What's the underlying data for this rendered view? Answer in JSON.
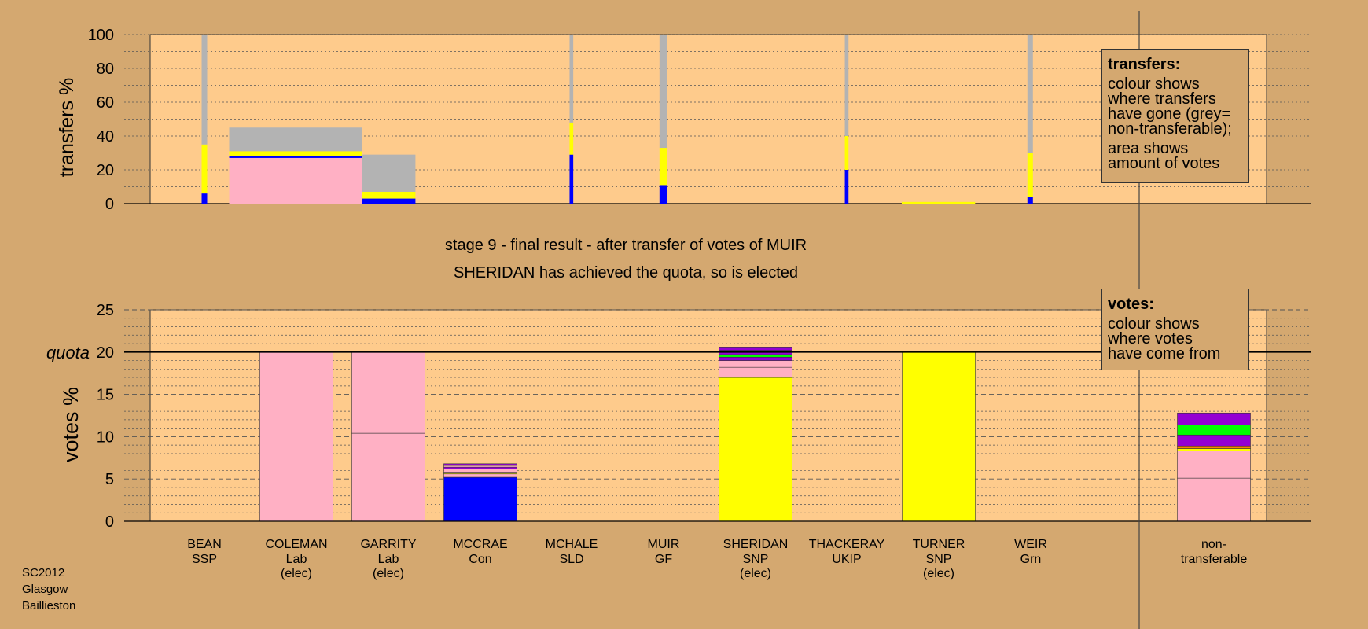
{
  "colors": {
    "background": "#d4a870",
    "plot_bg": "#fecb8c",
    "Lab": "#ffb0c4",
    "SNP": "#ffff00",
    "Con": "#0000ff",
    "Grn": "#00ff00",
    "SLD": "#9400d3",
    "nontransferable": "#b3b3b3",
    "ssp": "#ff7f00"
  },
  "stage_text": {
    "line1": "stage 9 - final result - after transfer of votes of MUIR",
    "line2": "SHERIDAN has achieved the quota, so is elected"
  },
  "legends": {
    "transfers": {
      "title": "transfers:",
      "lines_a": [
        "colour shows",
        "where transfers",
        "have gone (grey=",
        "non-transferable);"
      ],
      "lines_b": [
        "area shows",
        "amount of votes"
      ]
    },
    "votes": {
      "title": "votes:",
      "lines": [
        "colour shows",
        "where votes",
        "have come from"
      ]
    }
  },
  "footer": [
    "SC2012",
    "Glasgow",
    "Baillieston"
  ],
  "candidates": [
    {
      "name": "BEAN",
      "party": "SSP",
      "status": ""
    },
    {
      "name": "COLEMAN",
      "party": "Lab",
      "status": "(elec)"
    },
    {
      "name": "GARRITY",
      "party": "Lab",
      "status": "(elec)"
    },
    {
      "name": "MCCRAE",
      "party": "Con",
      "status": ""
    },
    {
      "name": "MCHALE",
      "party": "SLD",
      "status": ""
    },
    {
      "name": "MUIR",
      "party": "GF",
      "status": ""
    },
    {
      "name": "SHERIDAN",
      "party": "SNP",
      "status": "(elec)"
    },
    {
      "name": "THACKERAY",
      "party": "UKIP",
      "status": ""
    },
    {
      "name": "TURNER",
      "party": "SNP",
      "status": "(elec)"
    },
    {
      "name": "WEIR",
      "party": "Grn",
      "status": ""
    },
    {
      "name": "non-",
      "party": "transferable",
      "status": ""
    }
  ],
  "chart_data": [
    {
      "type": "bar",
      "ylabel": "transfers %",
      "ylim": [
        0,
        100
      ],
      "yticks": [
        0,
        20,
        40,
        60,
        80,
        100
      ],
      "grid": true,
      "note": "stacked transfer bars; bar width proportional to amount of votes transferred",
      "bars": [
        {
          "candidate": "BEAN",
          "x_from": 0.97,
          "x_to": 1.03,
          "segments": [
            {
              "color": "Con",
              "from": 0,
              "to": 6
            },
            {
              "color": "SNP",
              "from": 6,
              "to": 35
            },
            {
              "color": "nontransferable",
              "from": 35,
              "to": 100
            }
          ]
        },
        {
          "candidate": "COLEMAN",
          "x_from": 1.27,
          "x_to": 2.72,
          "segments": [
            {
              "color": "Lab",
              "from": 0,
              "to": 27
            },
            {
              "color": "Con",
              "from": 27,
              "to": 28
            },
            {
              "color": "SNP",
              "from": 28,
              "to": 31
            },
            {
              "color": "nontransferable",
              "from": 31,
              "to": 45
            }
          ]
        },
        {
          "candidate": "GARRITY",
          "x_from": 2.72,
          "x_to": 3.3,
          "segments": [
            {
              "color": "Con",
              "from": 0,
              "to": 3
            },
            {
              "color": "SNP",
              "from": 3,
              "to": 7
            },
            {
              "color": "nontransferable",
              "from": 7,
              "to": 29
            }
          ]
        },
        {
          "candidate": "MCHALE",
          "x_from": 4.98,
          "x_to": 5.02,
          "segments": [
            {
              "color": "Con",
              "from": 0,
              "to": 29
            },
            {
              "color": "SNP",
              "from": 29,
              "to": 48
            },
            {
              "color": "nontransferable",
              "from": 48,
              "to": 100
            }
          ]
        },
        {
          "candidate": "MUIR",
          "x_from": 5.96,
          "x_to": 6.04,
          "segments": [
            {
              "color": "Con",
              "from": 0,
              "to": 11
            },
            {
              "color": "SNP",
              "from": 11,
              "to": 33
            },
            {
              "color": "nontransferable",
              "from": 33,
              "to": 100
            }
          ]
        },
        {
          "candidate": "THACKERAY",
          "x_from": 7.98,
          "x_to": 8.02,
          "segments": [
            {
              "color": "Con",
              "from": 0,
              "to": 20
            },
            {
              "color": "SNP",
              "from": 20,
              "to": 40
            },
            {
              "color": "nontransferable",
              "from": 40,
              "to": 100
            }
          ]
        },
        {
          "candidate": "TURNER",
          "x_from": 8.6,
          "x_to": 9.4,
          "segments": [
            {
              "color": "SNP",
              "from": 0,
              "to": 1
            }
          ]
        },
        {
          "candidate": "WEIR",
          "x_from": 9.97,
          "x_to": 10.03,
          "segments": [
            {
              "color": "Con",
              "from": 0,
              "to": 4
            },
            {
              "color": "SNP",
              "from": 4,
              "to": 30
            },
            {
              "color": "nontransferable",
              "from": 30,
              "to": 100
            }
          ]
        }
      ]
    },
    {
      "type": "bar",
      "ylabel": "votes %",
      "ylim": [
        0,
        25
      ],
      "yticks": [
        0,
        5,
        10,
        15,
        20,
        25
      ],
      "quota": 20,
      "quota_label": "quota",
      "grid": true,
      "note": "stacked votes bars; colour shows where votes have come from",
      "bars": [
        {
          "candidate": "COLEMAN",
          "segments": [
            {
              "color": "Lab",
              "from": 0,
              "to": 20
            }
          ]
        },
        {
          "candidate": "GARRITY",
          "segments": [
            {
              "color": "Lab",
              "from": 0,
              "to": 10.4
            },
            {
              "color": "Lab",
              "from": 10.4,
              "to": 20
            }
          ]
        },
        {
          "candidate": "MCCRAE",
          "segments": [
            {
              "color": "Con",
              "from": 0,
              "to": 5.2
            },
            {
              "color": "Lab",
              "from": 5.2,
              "to": 5.6
            },
            {
              "color": "SNP",
              "from": 5.6,
              "to": 5.8
            },
            {
              "color": "Lab",
              "from": 5.8,
              "to": 6.2
            },
            {
              "color": "SLD",
              "from": 6.2,
              "to": 6.4
            },
            {
              "color": "Lab",
              "from": 6.4,
              "to": 6.6
            },
            {
              "color": "SLD",
              "from": 6.6,
              "to": 6.8
            }
          ]
        },
        {
          "candidate": "SHERIDAN",
          "segments": [
            {
              "color": "SNP",
              "from": 0,
              "to": 17
            },
            {
              "color": "Lab",
              "from": 17,
              "to": 18.2
            },
            {
              "color": "Lab",
              "from": 18.2,
              "to": 19
            },
            {
              "color": "SLD",
              "from": 19,
              "to": 19.4
            },
            {
              "color": "Grn",
              "from": 19.4,
              "to": 19.7
            },
            {
              "color": "SLD",
              "from": 19.7,
              "to": 20
            },
            {
              "color": "Grn",
              "from": 20,
              "to": 20.2
            },
            {
              "color": "SLD",
              "from": 20.2,
              "to": 20.6
            }
          ]
        },
        {
          "candidate": "TURNER",
          "segments": [
            {
              "color": "SNP",
              "from": 0,
              "to": 20
            }
          ]
        },
        {
          "candidate": "non-",
          "segments": [
            {
              "color": "Lab",
              "from": 0,
              "to": 5.1
            },
            {
              "color": "Lab",
              "from": 5.1,
              "to": 8.3
            },
            {
              "color": "SNP",
              "from": 8.3,
              "to": 8.6
            },
            {
              "color": "ssp",
              "from": 8.6,
              "to": 8.9
            },
            {
              "color": "SLD",
              "from": 8.9,
              "to": 10.2
            },
            {
              "color": "Grn",
              "from": 10.2,
              "to": 11.4
            },
            {
              "color": "SLD",
              "from": 11.4,
              "to": 12.8
            }
          ]
        }
      ]
    }
  ]
}
